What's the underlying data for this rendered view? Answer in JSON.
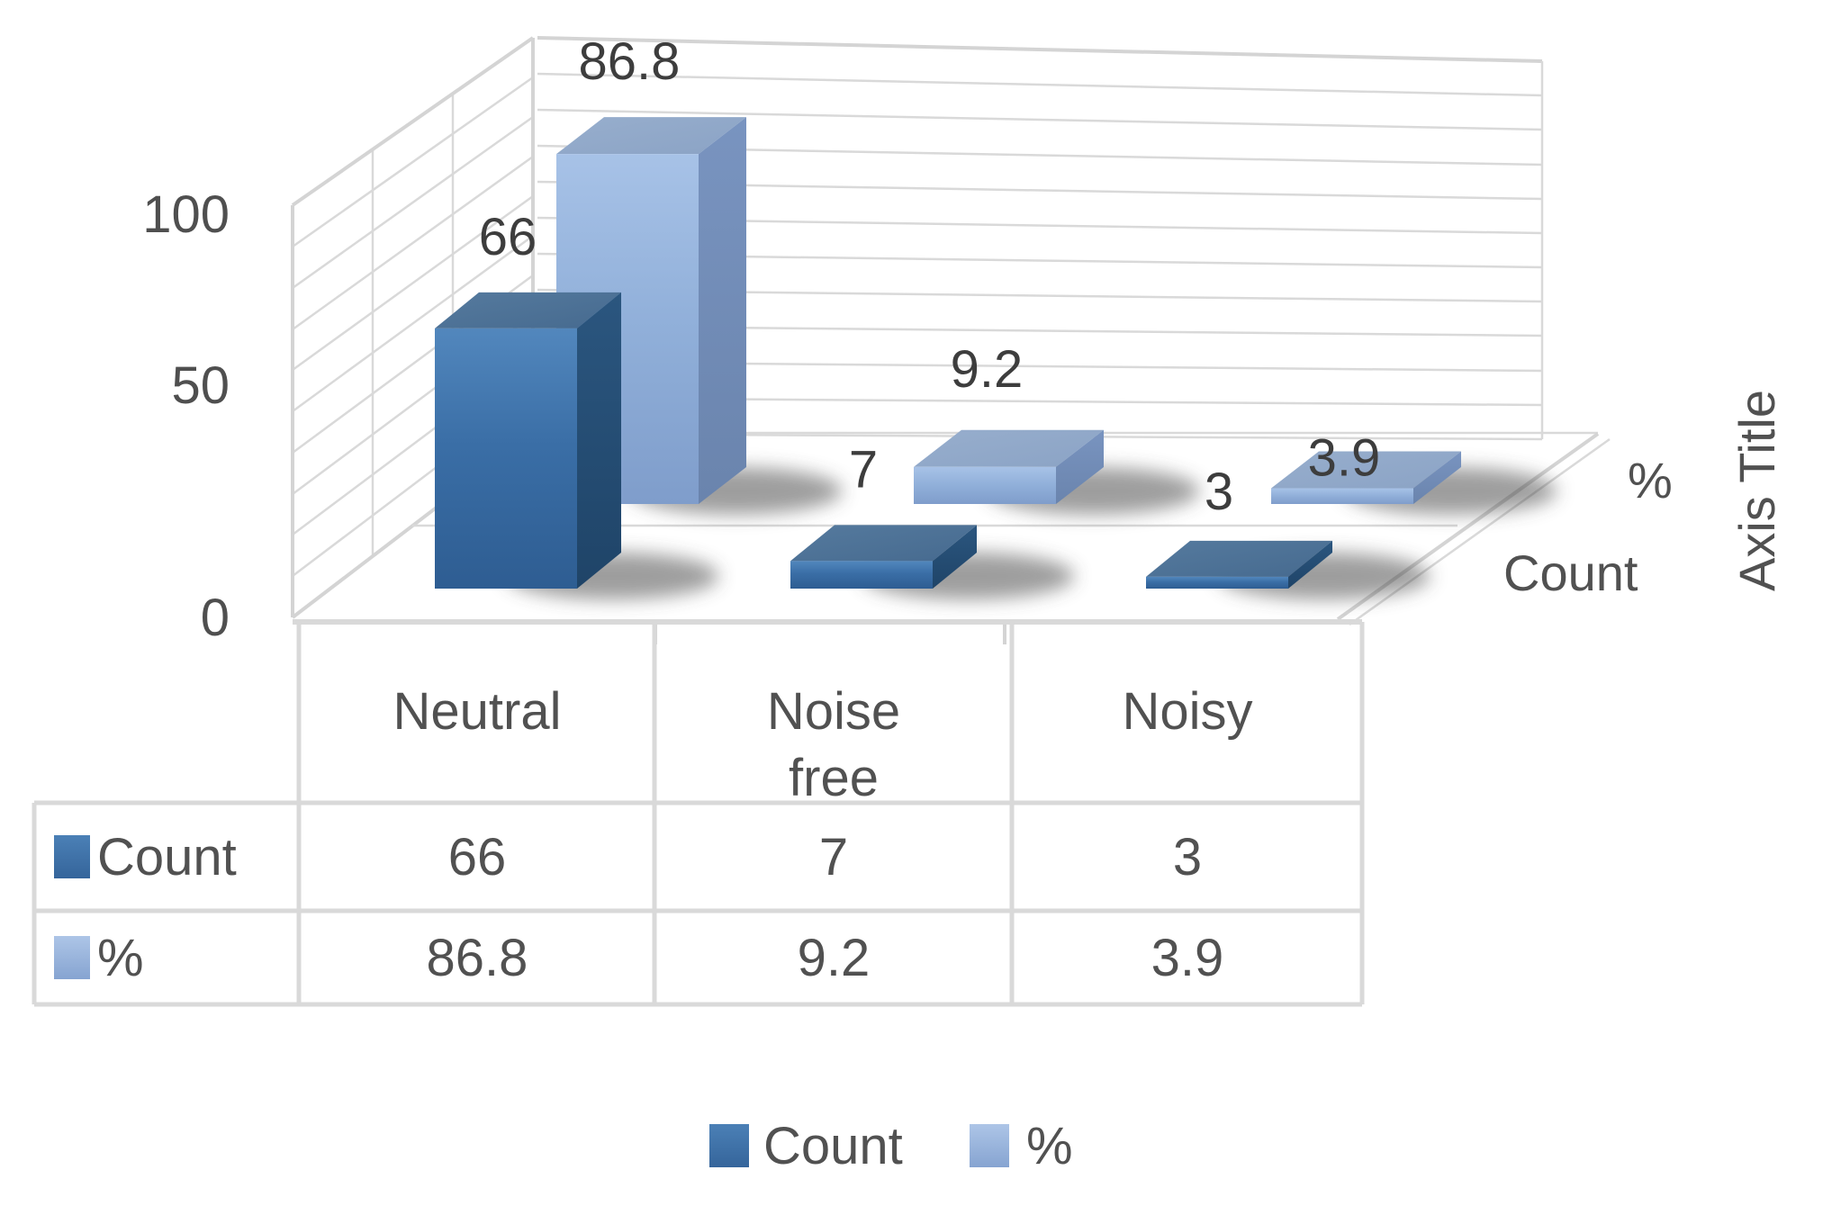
{
  "chart_data": {
    "type": "bar",
    "projection": "3d-perspective",
    "title": "",
    "categories": [
      "Neutral",
      "Noise free",
      "Noisy"
    ],
    "series": [
      {
        "name": "Count",
        "values": [
          66,
          7,
          3
        ],
        "labels": [
          "66",
          "7",
          "3"
        ],
        "color": "#3e6fa6"
      },
      {
        "name": "%",
        "values": [
          86.8,
          9.2,
          3.9
        ],
        "labels": [
          "86.8",
          "9.2",
          "3.9"
        ],
        "color": "#92b2dc"
      }
    ],
    "y_ticks": [
      "0",
      "50",
      "100"
    ],
    "ylim": [
      0,
      110
    ],
    "gridlines": "horizontal-minor-every-10",
    "axis_title": "Axis Title",
    "depth_axis_labels": [
      "Count",
      "%"
    ],
    "legend": {
      "position": "bottom",
      "entries": [
        "Count",
        "%"
      ]
    },
    "data_table": {
      "show_legend_keys": true,
      "rows": [
        {
          "label": "Count",
          "values": [
            "66",
            "7",
            "3"
          ]
        },
        {
          "label": "%",
          "values": [
            "86.8",
            "9.2",
            "3.9"
          ]
        }
      ]
    }
  }
}
